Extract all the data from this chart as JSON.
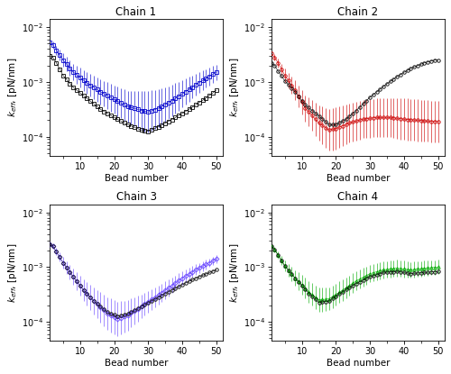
{
  "subplots": [
    {
      "title": "Chain 1",
      "color": "#0000cc",
      "marker_black": "s",
      "marker_color": "s",
      "xlabel": "Bead number",
      "ylabel": "$k_{eff}$, [pN/nm]"
    },
    {
      "title": "Chain 2",
      "color": "#cc0000",
      "marker_black": "o",
      "marker_color": "o",
      "xlabel": "Bead number",
      "ylabel": "$k_{eff}$, [pN/nm]"
    },
    {
      "title": "Chain 3",
      "color": "#6644ff",
      "marker_black": "o",
      "marker_color": "D",
      "xlabel": "Bead number",
      "ylabel": "$k_{eff}$, [pN/nm]"
    },
    {
      "title": "Chain 4",
      "color": "#00aa00",
      "marker_black": "o",
      "marker_color": "^",
      "xlabel": "Bead number",
      "ylabel": "$k_{eff}$, [pN/nm]"
    }
  ],
  "ylim_log": [
    -4.35,
    -1.85
  ],
  "xlim": [
    1,
    52
  ],
  "black_color": "black"
}
